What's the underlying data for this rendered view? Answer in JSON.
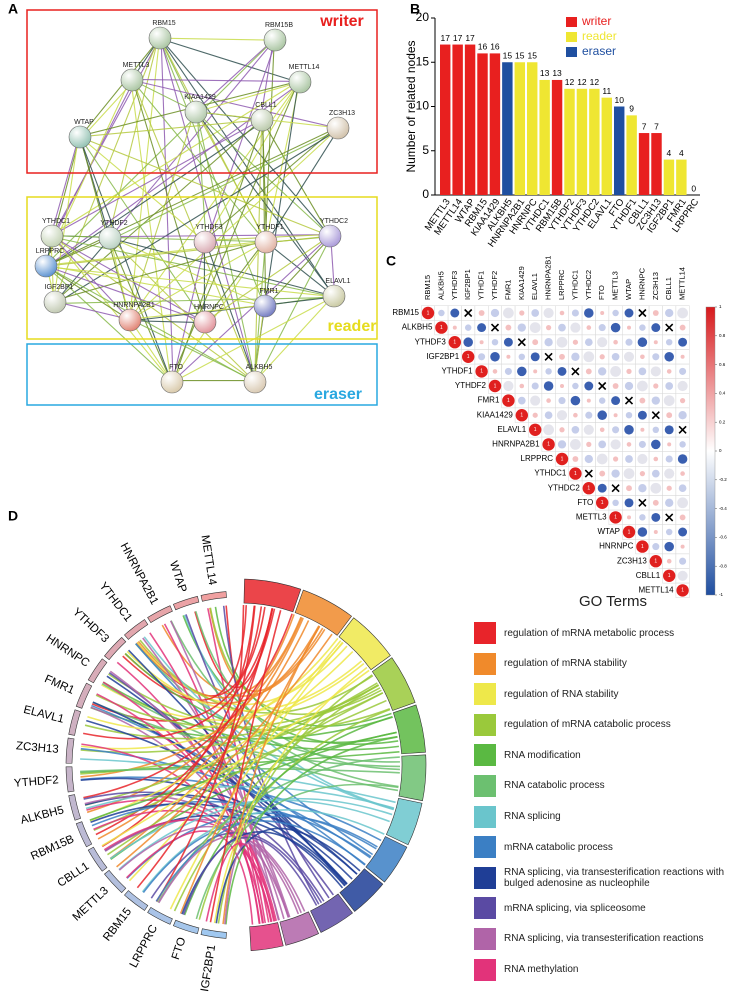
{
  "panel_labels": [
    "A",
    "B",
    "C",
    "D"
  ],
  "network": {
    "groups": [
      "writer",
      "reader",
      "eraser"
    ],
    "nodes": [
      "RBM15",
      "RBM15B",
      "METTL3",
      "METTL14",
      "KIAA1429",
      "CBLL1",
      "WTAP",
      "ZC3H13",
      "YTHDC1",
      "YTHDF2",
      "YTHDF3",
      "YTHDF1",
      "YTHDC2",
      "LRPPRC",
      "IGF2BP1",
      "ELAVL1",
      "FMR1",
      "HNRNPA2B1",
      "HNRNPC",
      "FTO",
      "ALKBH5"
    ]
  },
  "chart_data": [
    {
      "type": "bar",
      "y_label": "Number of related nodes",
      "categories": [
        "METTL3",
        "METTL14",
        "WTAP",
        "RBM15",
        "KIAA1429",
        "ALKBH5",
        "HNRNPA2B1",
        "HNRNPC",
        "YTHDC1",
        "RBM15B",
        "YTHDF2",
        "YTHDF3",
        "YTHDC2",
        "ELAVL1",
        "FTO",
        "YTHDF1",
        "CBLL1",
        "ZC3H13",
        "IGF2BP1",
        "FMR1",
        "LRPPRC"
      ],
      "values": [
        17,
        17,
        17,
        16,
        16,
        15,
        15,
        15,
        13,
        13,
        12,
        12,
        12,
        11,
        10,
        9,
        7,
        7,
        4,
        4,
        0
      ],
      "colors": [
        "#e8201f",
        "#e8201f",
        "#e8201f",
        "#e8201f",
        "#e8201f",
        "#1f4fa0",
        "#efe632",
        "#efe632",
        "#efe632",
        "#e8201f",
        "#efe632",
        "#efe632",
        "#efe632",
        "#efe632",
        "#1f4fa0",
        "#efe632",
        "#e8201f",
        "#e8201f",
        "#efe632",
        "#efe632",
        "#efe632"
      ],
      "legend": [
        {
          "name": "writer",
          "color": "#e8201f"
        },
        {
          "name": "reader",
          "color": "#efe632"
        },
        {
          "name": "eraser",
          "color": "#1f4fa0"
        }
      ],
      "ylim": [
        0,
        20
      ],
      "yticks": [
        0,
        5,
        10,
        15,
        20
      ]
    },
    {
      "type": "correlogram",
      "labels": [
        "RBM15",
        "ALKBH5",
        "YTHDF3",
        "IGF2BP1",
        "YTHDF1",
        "YTHDF2",
        "FMR1",
        "KIAA1429",
        "ELAVL1",
        "HNRNPA2B1",
        "LRPPRC",
        "YTHDC1",
        "YTHDC2",
        "FTO",
        "METTL3",
        "WTAP",
        "HNRNPC",
        "ZC3H13",
        "CBLL1",
        "METTL14"
      ],
      "diagonal": [
        1,
        1,
        1,
        1,
        1,
        1,
        1,
        1,
        1,
        1,
        1,
        1,
        1,
        1,
        1,
        1,
        1,
        1,
        1,
        1
      ],
      "zlim": [
        -1,
        1
      ],
      "zticks": [
        1,
        0.8,
        0.6,
        0.4,
        0.2,
        0,
        -0.2,
        -0.4,
        -0.6,
        -0.8,
        -1
      ]
    },
    {
      "type": "chord",
      "genes": [
        "METTL14",
        "WTAP",
        "HNRNPA2B1",
        "YTHDC1",
        "YTHDF3",
        "HNRNPC",
        "FMR1",
        "ELAVL1",
        "ZC3H13",
        "YTHDF2",
        "ALKBH5",
        "RBM15B",
        "CBLL1",
        "METTL3",
        "RBM15",
        "LRPPRC",
        "FTO",
        "IGF2BP1"
      ],
      "legend_title": "GO Terms",
      "terms": [
        {
          "name": "regulation of mRNA metabolic process",
          "color": "#e8242a"
        },
        {
          "name": "regulation of mRNA stability",
          "color": "#f08a2b"
        },
        {
          "name": "regulation of RNA stability",
          "color": "#eee84a"
        },
        {
          "name": "regulation of mRNA catabolic process",
          "color": "#9ac93b"
        },
        {
          "name": "RNA modification",
          "color": "#5ab942"
        },
        {
          "name": "RNA catabolic process",
          "color": "#6cc070"
        },
        {
          "name": "RNA splicing",
          "color": "#6ac5cc"
        },
        {
          "name": "mRNA catabolic process",
          "color": "#3b7fc4"
        },
        {
          "name": "RNA splicing, via transesterification reactions with bulged adenosine as nucleophile",
          "color": "#1f3e96"
        },
        {
          "name": "mRNA splicing, via spliceosome",
          "color": "#5a4aa3"
        },
        {
          "name": "RNA splicing, via transesterification reactions",
          "color": "#b064a8"
        },
        {
          "name": "RNA methylation",
          "color": "#e2337a"
        }
      ]
    }
  ]
}
